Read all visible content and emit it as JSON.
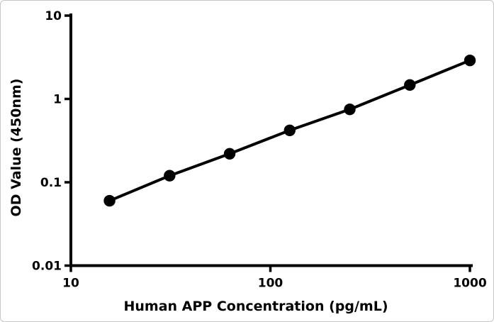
{
  "window": {
    "background": "#ffffff",
    "border_color": "#c6c6c6"
  },
  "chart_data": {
    "type": "line",
    "title": "",
    "xlabel": "Human APP Concentration (pg/mL)",
    "ylabel": "OD Value (450nm)",
    "xscale": "log",
    "yscale": "log",
    "xlim": [
      10,
      1000
    ],
    "ylim": [
      0.01,
      10
    ],
    "x": [
      15.625,
      31.25,
      62.5,
      125,
      250,
      500,
      1000
    ],
    "y": [
      0.06,
      0.12,
      0.22,
      0.42,
      0.75,
      1.47,
      2.9
    ],
    "x_ticks": {
      "values": [
        10,
        100,
        1000
      ],
      "labels": [
        "10",
        "100",
        "1000"
      ]
    },
    "y_ticks": {
      "values": [
        0.01,
        0.1,
        1,
        10
      ],
      "labels": [
        "0.01",
        "0.1",
        "1",
        "10"
      ]
    },
    "grid": false,
    "legend": null,
    "line_color": "#000000",
    "marker_color": "#000000",
    "axis_color": "#000000",
    "marker_shape": "circle"
  }
}
